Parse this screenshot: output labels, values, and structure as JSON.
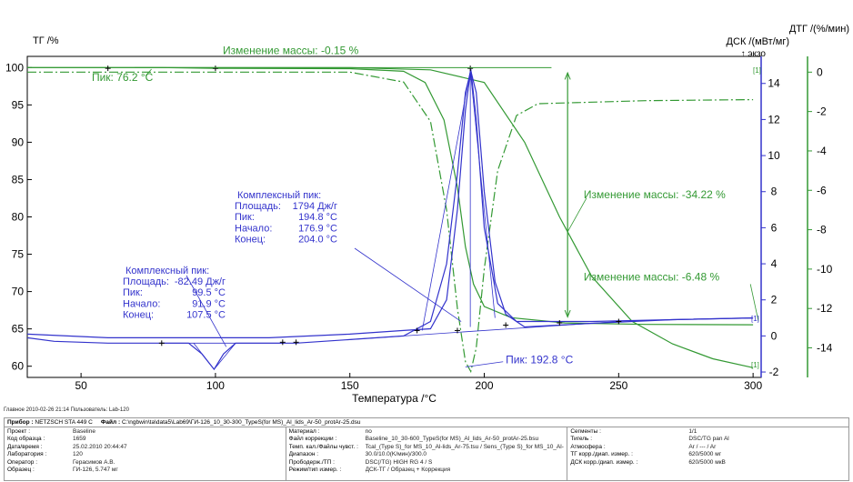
{
  "chart_data": {
    "type": "line",
    "xlabel": "Температура /°C",
    "x_range": [
      30,
      303
    ],
    "x_ticks": [
      50,
      100,
      150,
      200,
      250,
      300
    ],
    "axes": {
      "tg": {
        "label": "ТГ /%",
        "range": [
          58.5,
          101.5
        ],
        "ticks": [
          60,
          65,
          70,
          75,
          80,
          85,
          90,
          95,
          100
        ],
        "color": "#000000"
      },
      "dsc": {
        "label": "ДСК /(мВт/мг)",
        "sublabel": "↑ экзо",
        "range": [
          -2.3,
          15.5
        ],
        "ticks": [
          -2,
          0,
          2,
          4,
          6,
          8,
          10,
          12,
          14
        ],
        "color": "#3333cc"
      },
      "dtg": {
        "label": "ДТГ /(%/мин)",
        "range": [
          -15.5,
          0.8
        ],
        "ticks": [
          0,
          -2,
          -4,
          -6,
          -8,
          -10,
          -12,
          -14
        ],
        "color": "#339933"
      }
    },
    "series": [
      {
        "axis": "tg",
        "color": "#339933",
        "dash": "",
        "points": [
          [
            30,
            100
          ],
          [
            80,
            100
          ],
          [
            100,
            99.9
          ],
          [
            150,
            99.85
          ],
          [
            170,
            99.5
          ],
          [
            178,
            98
          ],
          [
            185,
            93
          ],
          [
            190,
            84
          ],
          [
            193,
            76
          ],
          [
            196,
            71
          ],
          [
            200,
            68
          ],
          [
            210,
            66.5
          ],
          [
            230,
            65.8
          ],
          [
            260,
            65.6
          ],
          [
            300,
            65.55
          ]
        ]
      },
      {
        "axis": "tg",
        "color": "#339933",
        "dash": "",
        "points": [
          [
            30,
            100
          ],
          [
            100,
            100
          ],
          [
            150,
            100
          ],
          [
            180,
            99.7
          ],
          [
            200,
            98
          ],
          [
            215,
            90
          ],
          [
            228,
            80
          ],
          [
            240,
            72
          ],
          [
            255,
            66
          ],
          [
            270,
            63
          ],
          [
            285,
            61
          ],
          [
            300,
            59.8
          ]
        ]
      },
      {
        "axis": "dtg",
        "color": "#339933",
        "dash": "10,3,2,3",
        "points": [
          [
            30,
            0
          ],
          [
            100,
            0
          ],
          [
            150,
            0
          ],
          [
            170,
            -0.5
          ],
          [
            180,
            -2.5
          ],
          [
            186,
            -7
          ],
          [
            190,
            -12
          ],
          [
            193,
            -14.7
          ],
          [
            195,
            -15.2
          ],
          [
            197,
            -14
          ],
          [
            200,
            -10
          ],
          [
            205,
            -5
          ],
          [
            212,
            -2.2
          ],
          [
            220,
            -1.6
          ],
          [
            260,
            -1.45
          ],
          [
            298,
            -1.4
          ],
          [
            300,
            -1.4
          ]
        ]
      },
      {
        "axis": "dsc",
        "color": "#3333cc",
        "dash": "",
        "points": [
          [
            30,
            -0.1
          ],
          [
            40,
            -0.3
          ],
          [
            60,
            -0.4
          ],
          [
            80,
            -0.4
          ],
          [
            90,
            -0.4
          ],
          [
            95,
            -1
          ],
          [
            99.5,
            -1.85
          ],
          [
            103,
            -1
          ],
          [
            107.5,
            -0.4
          ],
          [
            130,
            -0.4
          ],
          [
            150,
            -0.2
          ],
          [
            170,
            0
          ],
          [
            180,
            0.8
          ],
          [
            186,
            4
          ],
          [
            190,
            9
          ],
          [
            193,
            13.5
          ],
          [
            195,
            14.7
          ],
          [
            197,
            13.5
          ],
          [
            200,
            8
          ],
          [
            204,
            3
          ],
          [
            208,
            1.2
          ],
          [
            215,
            0.5
          ],
          [
            240,
            0.7
          ],
          [
            270,
            0.9
          ],
          [
            300,
            1.0
          ]
        ]
      },
      {
        "axis": "dsc",
        "color": "#3333cc",
        "dash": "",
        "points": [
          [
            30,
            0.1
          ],
          [
            60,
            -0.1
          ],
          [
            90,
            -0.1
          ],
          [
            120,
            -0.1
          ],
          [
            150,
            0.1
          ],
          [
            170,
            0.3
          ],
          [
            180,
            0.4
          ],
          [
            186,
            2
          ],
          [
            190,
            7
          ],
          [
            193,
            12.5
          ],
          [
            195,
            14.8
          ],
          [
            197,
            12
          ],
          [
            200,
            6
          ],
          [
            205,
            1.8
          ],
          [
            212,
            0.8
          ],
          [
            240,
            0.8
          ],
          [
            270,
            0.9
          ],
          [
            300,
            1.0
          ]
        ]
      }
    ],
    "annotations": {
      "mass_change_1": "Изменение массы: -0.15 %",
      "mass_change_2": "Изменение массы: -34.22 %",
      "mass_change_3": "Изменение массы: -6.48 %",
      "peak_1": "Пик: 76.2 °C",
      "peak_2": "Пик: 192.8 °C",
      "marker_1": "[1]",
      "marker_2": "[1]",
      "marker_3": "[1]",
      "complex_peak_1": {
        "title": "Комплексный пик:",
        "area_label": "Площадь:",
        "area": "1794 Дж/г",
        "peak_label": "Пик:",
        "peak": "194.8 °C",
        "onset_label": "Начало:",
        "onset": "176.9 °C",
        "end_label": "Конец:",
        "end": "204.0 °C"
      },
      "complex_peak_2": {
        "title": "Комплексный пик:",
        "area_label": "Площадь:",
        "area": "-82.49 Дж/г",
        "peak_label": "Пик:",
        "peak": "99.5 °C",
        "onset_label": "Начало:",
        "onset": "91.9 °C",
        "end_label": "Конец:",
        "end": "107.5 °C"
      }
    }
  },
  "footer": {
    "main_line": "Главное    2010-02-26 21:14    Пользователь: Lab-120",
    "instrument_label": "Прибор :",
    "instrument": "NETZSCH STA 449 C",
    "file_label": "Файл :",
    "file": "C:\\ngbwin\\ta\\data5\\Lab69\\ГИ-126_10_30-300_TypeS(for MS)_Al_lids_Ar-50_protAr-25.dsu"
  },
  "info": {
    "col1": [
      {
        "k": "Проект :",
        "v": "Baseline"
      },
      {
        "k": "Код образца :",
        "v": "1659"
      },
      {
        "k": "Дата/время :",
        "v": "25.02.2010 20:44:47"
      },
      {
        "k": "Лаборатория :",
        "v": "120"
      },
      {
        "k": "Оператор :",
        "v": "Герасимов А.В."
      },
      {
        "k": "Образец :",
        "v": "ГИ-126, 5.747 мг"
      }
    ],
    "col2": [
      {
        "k": "Материал :",
        "v": "no"
      },
      {
        "k": "Файл коррекции :",
        "v": "Baseline_10_30-600_TypeS(for MS)_Al_lids_Ar-50_protAr-25.bsu"
      },
      {
        "k": "Темп. кал./Файлы чувст. :",
        "v": "Tcal_(Type S)_for MS_10_Al-lids_Ar-75.tsu / Sens_(Type S)_for MS_10_Al-lids_Ar-75.esu"
      },
      {
        "k": "Диапазон :",
        "v": "30.0/10.0(K/мин)/300.0"
      },
      {
        "k": "Прободерж./ТП :",
        "v": "DSC(/TG) HIGH RG 4 / S"
      },
      {
        "k": "Режим/тип измер. :",
        "v": "ДСК-ТГ / Образец + Коррекция"
      }
    ],
    "col3": [
      {
        "k": "Сегменты :",
        "v": "1/1"
      },
      {
        "k": "Тигель :",
        "v": "DSC/TG pan Al"
      },
      {
        "k": "Атмосфера :",
        "v": "Ar / --- / Ar"
      },
      {
        "k": "ТГ корр./диап. измер. :",
        "v": "620/5000 мг"
      },
      {
        "k": "ДСК корр./диап. измер. :",
        "v": "620/5000 мкВ"
      }
    ]
  }
}
